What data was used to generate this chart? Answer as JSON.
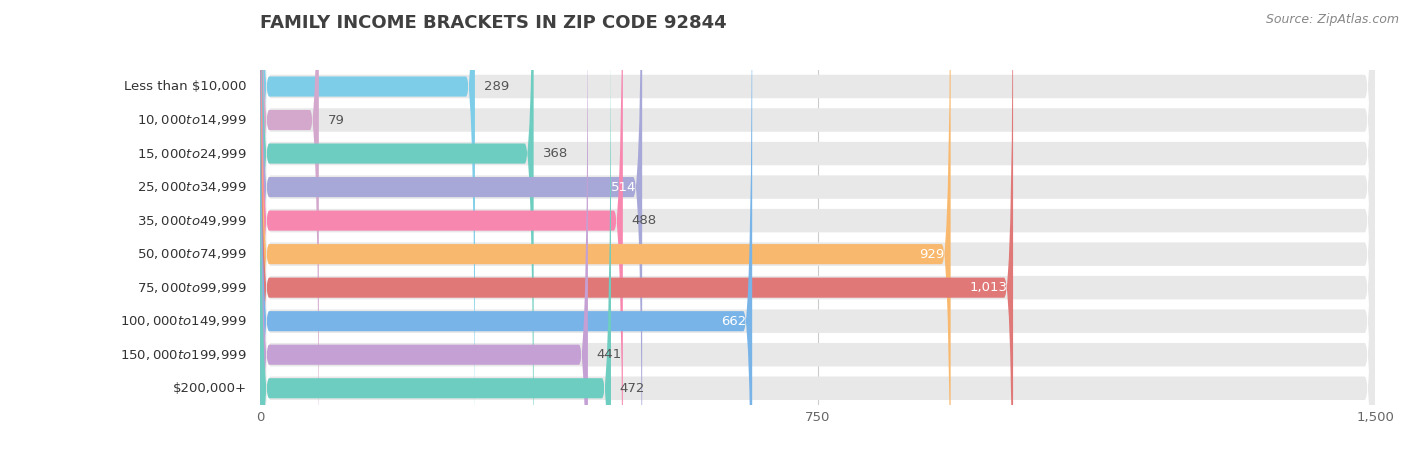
{
  "title": "Family Income Brackets in Zip Code 92844",
  "source": "Source: ZipAtlas.com",
  "categories": [
    "Less than $10,000",
    "$10,000 to $14,999",
    "$15,000 to $24,999",
    "$25,000 to $34,999",
    "$35,000 to $49,999",
    "$50,000 to $74,999",
    "$75,000 to $99,999",
    "$100,000 to $149,999",
    "$150,000 to $199,999",
    "$200,000+"
  ],
  "values": [
    289,
    79,
    368,
    514,
    488,
    929,
    1013,
    662,
    441,
    472
  ],
  "bar_colors": [
    "#7ecde8",
    "#d4a8cc",
    "#6dcdc0",
    "#a8a8d8",
    "#f887b0",
    "#f8b96e",
    "#e07878",
    "#78b4e8",
    "#c4a0d4",
    "#6dcdc0"
  ],
  "xlim": [
    0,
    1500
  ],
  "xticks": [
    0,
    750,
    1500
  ],
  "background_color": "#ffffff",
  "bar_bg_color": "#e8e8e8",
  "title_fontsize": 13,
  "label_fontsize": 9.5,
  "value_fontsize": 9.5,
  "source_fontsize": 9
}
